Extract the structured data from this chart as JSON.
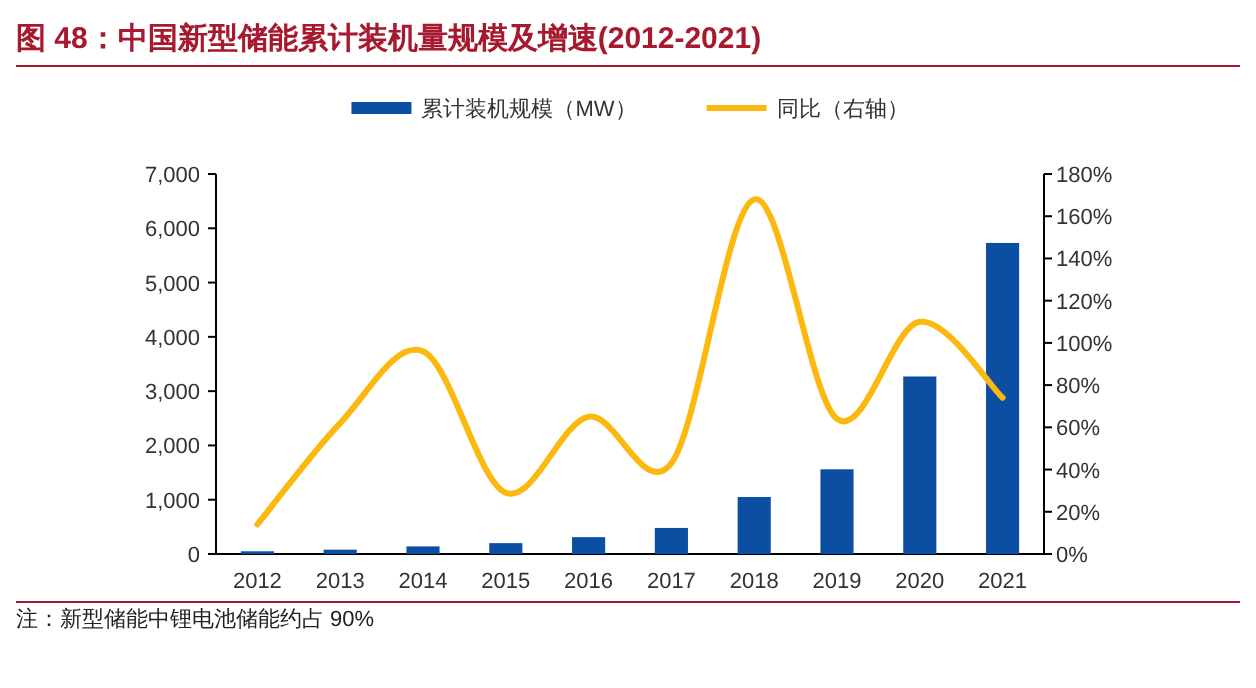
{
  "chart_data": {
    "type": "bar",
    "title": "图 48：中国新型储能累计装机量规模及增速(2012-2021)",
    "categories": [
      "2012",
      "2013",
      "2014",
      "2015",
      "2016",
      "2017",
      "2018",
      "2019",
      "2020",
      "2021"
    ],
    "series": [
      {
        "name": "累计装机规模（MW）",
        "color": "#0b4ea2",
        "values": [
          50,
          80,
          140,
          200,
          310,
          480,
          1050,
          1560,
          3270,
          5730
        ]
      },
      {
        "name": "同比（右轴）",
        "type": "line",
        "axis": "y2",
        "color": "#fbb80f",
        "values": [
          14,
          62,
          96,
          29,
          65,
          43,
          168,
          64,
          110,
          74
        ]
      }
    ],
    "ylim": [
      0,
      7000
    ],
    "yticks": [
      {
        "value": 0,
        "label": "0"
      },
      {
        "value": 1000,
        "label": "1,000"
      },
      {
        "value": 2000,
        "label": "2,000"
      },
      {
        "value": 3000,
        "label": "3,000"
      },
      {
        "value": 4000,
        "label": "4,000"
      },
      {
        "value": 5000,
        "label": "5,000"
      },
      {
        "value": 6000,
        "label": "6,000"
      },
      {
        "value": 7000,
        "label": "7,000"
      }
    ],
    "y2lim": [
      0,
      180
    ],
    "y2ticks": [
      {
        "value": 0,
        "label": "0%"
      },
      {
        "value": 20,
        "label": "20%"
      },
      {
        "value": 40,
        "label": "40%"
      },
      {
        "value": 60,
        "label": "60%"
      },
      {
        "value": 80,
        "label": "80%"
      },
      {
        "value": 100,
        "label": "100%"
      },
      {
        "value": 120,
        "label": "120%"
      },
      {
        "value": 140,
        "label": "140%"
      },
      {
        "value": 160,
        "label": "160%"
      },
      {
        "value": 180,
        "label": "180%"
      }
    ],
    "legend": "top",
    "grid": false,
    "annotations": [
      "注：新型储能中锂电池储能约占 90%"
    ]
  }
}
